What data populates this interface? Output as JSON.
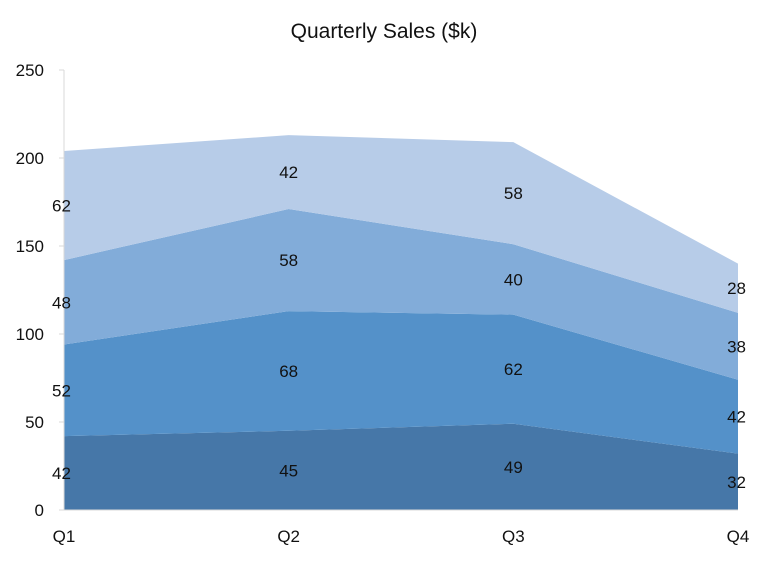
{
  "chart_data": {
    "type": "area",
    "stacked": true,
    "title": "Quarterly Sales ($k)",
    "xlabel": "",
    "ylabel": "",
    "categories": [
      "Q1",
      "Q2",
      "Q3",
      "Q4"
    ],
    "ylim": [
      0,
      250
    ],
    "yticks": [
      0,
      50,
      100,
      150,
      200,
      250
    ],
    "grid": false,
    "legend": "none",
    "series": [
      {
        "values": [
          42,
          45,
          49,
          32
        ],
        "color": "#4677a8"
      },
      {
        "values": [
          52,
          68,
          62,
          42
        ],
        "color": "#5491c9"
      },
      {
        "values": [
          48,
          58,
          40,
          38
        ],
        "color": "#82acd9"
      },
      {
        "values": [
          62,
          42,
          58,
          28
        ],
        "color": "#b7cce8"
      }
    ]
  }
}
